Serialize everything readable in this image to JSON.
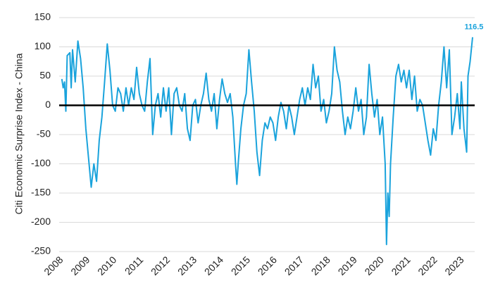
{
  "chart_data": {
    "type": "line",
    "y_label": "Citi Economic Surprise Index - China",
    "end_label": "116.5",
    "color": "#1aa3dc",
    "grid": true,
    "xlim": [
      2007.9,
      2023.45
    ],
    "xticks": [
      2008,
      2009,
      2010,
      2011,
      2012,
      2013,
      2014,
      2015,
      2016,
      2017,
      2018,
      2019,
      2020,
      2021,
      2022,
      2023
    ],
    "ylim": [
      -250,
      150
    ],
    "yticks": [
      -250,
      -200,
      -150,
      -100,
      -50,
      0,
      50,
      100,
      150
    ],
    "series": [
      {
        "name": "China",
        "x": [
          2008.0,
          2008.05,
          2008.1,
          2008.15,
          2008.2,
          2008.3,
          2008.35,
          2008.4,
          2008.5,
          2008.6,
          2008.7,
          2008.8,
          2008.9,
          2009.0,
          2009.1,
          2009.2,
          2009.3,
          2009.4,
          2009.5,
          2009.6,
          2009.7,
          2009.8,
          2009.9,
          2010.0,
          2010.1,
          2010.2,
          2010.3,
          2010.4,
          2010.5,
          2010.6,
          2010.7,
          2010.8,
          2010.9,
          2011.0,
          2011.1,
          2011.2,
          2011.3,
          2011.4,
          2011.5,
          2011.6,
          2011.7,
          2011.8,
          2011.9,
          2012.0,
          2012.1,
          2012.2,
          2012.3,
          2012.4,
          2012.5,
          2012.6,
          2012.7,
          2012.8,
          2012.9,
          2013.0,
          2013.1,
          2013.2,
          2013.3,
          2013.4,
          2013.5,
          2013.6,
          2013.7,
          2013.8,
          2013.9,
          2014.0,
          2014.1,
          2014.2,
          2014.3,
          2014.4,
          2014.5,
          2014.55,
          2014.6,
          2014.7,
          2014.8,
          2014.9,
          2015.0,
          2015.1,
          2015.2,
          2015.3,
          2015.4,
          2015.5,
          2015.6,
          2015.7,
          2015.8,
          2015.9,
          2016.0,
          2016.1,
          2016.2,
          2016.3,
          2016.4,
          2016.5,
          2016.6,
          2016.7,
          2016.8,
          2016.9,
          2017.0,
          2017.1,
          2017.2,
          2017.3,
          2017.4,
          2017.5,
          2017.6,
          2017.7,
          2017.8,
          2017.9,
          2018.0,
          2018.1,
          2018.2,
          2018.3,
          2018.4,
          2018.5,
          2018.6,
          2018.7,
          2018.8,
          2018.9,
          2019.0,
          2019.1,
          2019.2,
          2019.3,
          2019.4,
          2019.5,
          2019.6,
          2019.7,
          2019.8,
          2019.9,
          2020.0,
          2020.1,
          2020.15,
          2020.2,
          2020.25,
          2020.3,
          2020.4,
          2020.5,
          2020.6,
          2020.7,
          2020.8,
          2020.9,
          2021.0,
          2021.1,
          2021.2,
          2021.3,
          2021.4,
          2021.5,
          2021.6,
          2021.7,
          2021.8,
          2021.9,
          2022.0,
          2022.1,
          2022.2,
          2022.3,
          2022.4,
          2022.5,
          2022.6,
          2022.7,
          2022.8,
          2022.9,
          2022.95,
          2023.05,
          2023.15,
          2023.2,
          2023.28,
          2023.37
        ],
        "values": [
          45,
          30,
          40,
          -10,
          85,
          90,
          30,
          95,
          40,
          110,
          80,
          30,
          -40,
          -90,
          -140,
          -100,
          -130,
          -60,
          -20,
          40,
          105,
          60,
          0,
          -10,
          30,
          20,
          -10,
          30,
          0,
          30,
          10,
          65,
          20,
          0,
          -10,
          40,
          80,
          -50,
          0,
          20,
          -20,
          30,
          -10,
          30,
          -50,
          20,
          30,
          0,
          -10,
          20,
          -40,
          -60,
          0,
          10,
          -30,
          0,
          20,
          55,
          10,
          -10,
          20,
          -40,
          10,
          45,
          20,
          5,
          20,
          -20,
          -100,
          -135,
          -100,
          -40,
          0,
          20,
          95,
          40,
          -10,
          -80,
          -120,
          -60,
          -30,
          -40,
          -20,
          -30,
          -60,
          -20,
          5,
          -10,
          -40,
          0,
          -20,
          -50,
          -20,
          10,
          30,
          0,
          30,
          10,
          70,
          30,
          50,
          -10,
          10,
          -30,
          -10,
          20,
          100,
          60,
          40,
          -10,
          -50,
          -20,
          -40,
          -10,
          30,
          -10,
          10,
          -50,
          -20,
          70,
          20,
          -20,
          10,
          -50,
          -20,
          -100,
          -238,
          -150,
          -190,
          -100,
          -20,
          50,
          70,
          40,
          60,
          30,
          60,
          10,
          50,
          -10,
          10,
          0,
          -30,
          -60,
          -85,
          -40,
          -60,
          0,
          40,
          100,
          30,
          95,
          -50,
          -20,
          20,
          -40,
          40,
          -40,
          -80,
          50,
          75,
          116.5
        ]
      }
    ]
  }
}
